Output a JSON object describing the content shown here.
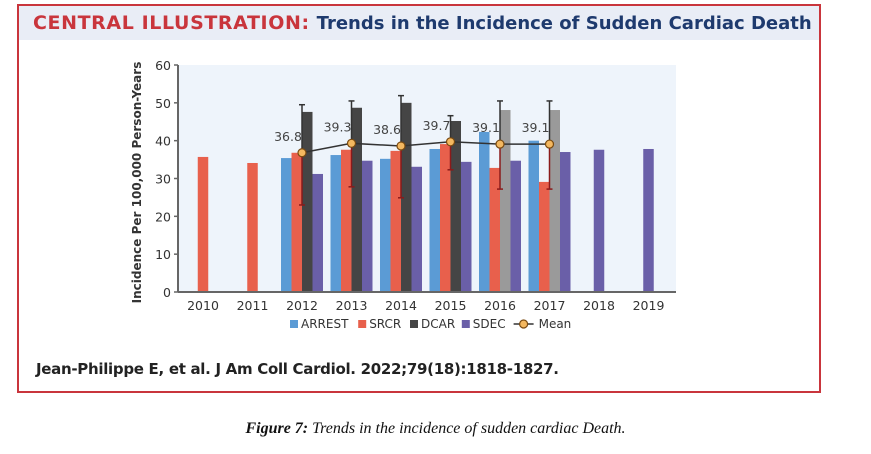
{
  "header": {
    "lead": "CENTRAL ILLUSTRATION:",
    "title": "Trends in the Incidence of Sudden Cardiac Death"
  },
  "citation": "Jean-Philippe E, et al. J Am Coll Cardiol. 2022;79(18):1818-1827.",
  "caption": {
    "label": "Figure 7:",
    "text": "Trends in the incidence of sudden cardiac Death."
  },
  "chart_data": {
    "type": "bar",
    "title": "Trends in the Incidence of Sudden Cardiac Death",
    "xlabel": "",
    "ylabel": "Incidence Per 100,000 Person-Years",
    "ylim": [
      0,
      60
    ],
    "yticks": [
      0,
      10,
      20,
      30,
      40,
      50,
      60
    ],
    "grid": false,
    "legend_position": "bottom",
    "categories": [
      "2010",
      "2011",
      "2012",
      "2013",
      "2014",
      "2015",
      "2016",
      "2017",
      "2018",
      "2019"
    ],
    "series": [
      {
        "name": "ARREST",
        "color": "#5b9bd5",
        "values": [
          null,
          null,
          35.4,
          36.2,
          35.2,
          37.8,
          42.3,
          40.0,
          null,
          null
        ]
      },
      {
        "name": "SRCR",
        "color": "#e8604c",
        "values": [
          35.7,
          34.1,
          36.8,
          37.6,
          37.3,
          39.1,
          32.8,
          29.1,
          null,
          null
        ]
      },
      {
        "name": "DCAR",
        "color": "#454545",
        "alt_color": "#9a9a9a",
        "values": [
          null,
          null,
          47.6,
          48.7,
          50.0,
          45.2,
          48.1,
          48.1,
          null,
          null
        ]
      },
      {
        "name": "SDEC",
        "color": "#6a5fa8",
        "values": [
          null,
          null,
          31.2,
          34.7,
          33.1,
          34.4,
          34.7,
          37.0,
          37.6,
          37.8
        ]
      }
    ],
    "mean": {
      "name": "Mean",
      "color": "#333333",
      "marker_fill": "#f4b860",
      "error_color": "#8b1a1a",
      "points": [
        {
          "category": "2012",
          "value": 36.8,
          "label": "36.8",
          "err_low": 23.0,
          "err_high": 49.5
        },
        {
          "category": "2013",
          "value": 39.3,
          "label": "39.3",
          "err_low": 27.8,
          "err_high": 50.5
        },
        {
          "category": "2014",
          "value": 38.6,
          "label": "38.6",
          "err_low": 24.9,
          "err_high": 51.9
        },
        {
          "category": "2015",
          "value": 39.7,
          "label": "39.7",
          "err_low": 32.3,
          "err_high": 46.6
        },
        {
          "category": "2016",
          "value": 39.1,
          "label": "39.1",
          "err_low": 27.2,
          "err_high": 50.5
        },
        {
          "category": "2017",
          "value": 39.1,
          "label": "39.1",
          "err_low": 27.2,
          "err_high": 50.5
        }
      ]
    },
    "legend": [
      "ARREST",
      "SRCR",
      "DCAR",
      "SDEC",
      "Mean"
    ]
  }
}
